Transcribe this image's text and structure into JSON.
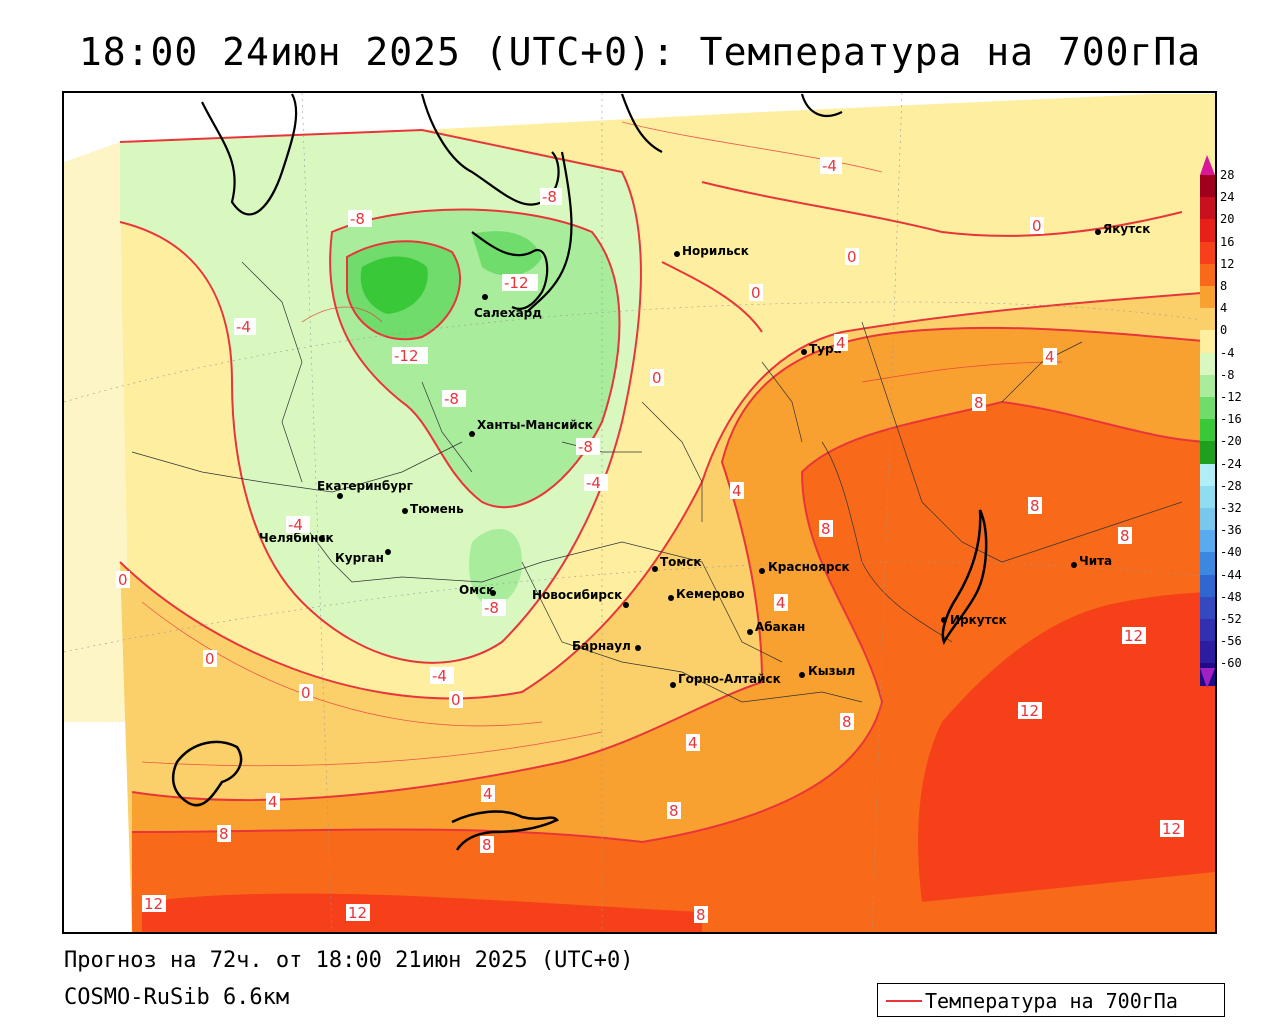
{
  "header": {
    "title": "18:00 24июн 2025 (UTC+0): Температура на 700гПа"
  },
  "footer": {
    "forecast_text": "Прогноз на 72ч. от 18:00 21июн 2025 (UTC+0)",
    "model_text": "COSMO-RuSib 6.6км"
  },
  "legend": {
    "label": "Температура на 700гПа",
    "line_color": "#e8353a"
  },
  "colorbar": {
    "labels": [
      "28",
      "24",
      "20",
      "16",
      "12",
      "8",
      "4",
      "0",
      "-4",
      "-8",
      "-12",
      "-16",
      "-20",
      "-24",
      "-28",
      "-32",
      "-36",
      "-40",
      "-44",
      "-48",
      "-52",
      "-56",
      "-60"
    ],
    "colors": [
      "#a0001e",
      "#c8101e",
      "#e8201a",
      "#f5401a",
      "#f86a1a",
      "#f8a030",
      "#fbd06a",
      "#fdeea0",
      "#d8f8c0",
      "#a8ec9c",
      "#70dc6c",
      "#38c838",
      "#1ea01e",
      "#b0eef8",
      "#90dcf0",
      "#78c8ec",
      "#5aaaf0",
      "#3c88e0",
      "#3066d0",
      "#3448c0",
      "#3030b0",
      "#2c1ca0",
      "#200a88"
    ],
    "top_arrow_color": "#d81898",
    "bottom_arrow_color": "#a020c0"
  },
  "map": {
    "cities": [
      {
        "name": "Норильск"
      },
      {
        "name": "Якутск"
      },
      {
        "name": "Салехард"
      },
      {
        "name": "Тура"
      },
      {
        "name": "Ханты-Мансийск"
      },
      {
        "name": "Екатеринбург"
      },
      {
        "name": "Тюмень"
      },
      {
        "name": "Челябинск"
      },
      {
        "name": "Курган"
      },
      {
        "name": "Омск"
      },
      {
        "name": "Новосибирск"
      },
      {
        "name": "Томск"
      },
      {
        "name": "Кемерово"
      },
      {
        "name": "Красноярск"
      },
      {
        "name": "Барнаул"
      },
      {
        "name": "Абакан"
      },
      {
        "name": "Горно-Алтайск"
      },
      {
        "name": "Кызыл"
      },
      {
        "name": "Иркутск"
      },
      {
        "name": "Чита"
      }
    ],
    "contour_labels": [
      "-8",
      "-4",
      "-8",
      "-12",
      "-12",
      "-4",
      "0",
      "-8",
      "0",
      "0",
      "4",
      "-8",
      "-4",
      "0",
      "4",
      "8",
      "8",
      "8",
      "4",
      "4",
      "8",
      "0",
      "0",
      "0",
      "-4",
      "-8",
      "-4",
      "0",
      "12",
      "4",
      "4",
      "8",
      "8",
      "8",
      "12",
      "12",
      "8",
      "12",
      "12",
      "4",
      "-4"
    ]
  }
}
